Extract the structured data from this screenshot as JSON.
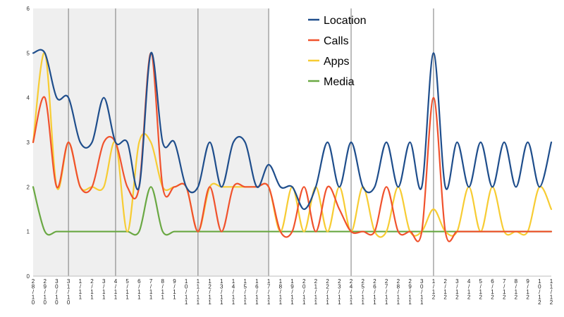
{
  "chart_data": {
    "type": "line",
    "ylim": [
      0,
      6
    ],
    "yticks": [
      "0",
      "1",
      "2",
      "3",
      "4",
      "5",
      "6"
    ],
    "grid": "vertical",
    "legend_position": "top-right",
    "categories": [
      "28/10",
      "29/10",
      "30/10",
      "31/10",
      "1/11",
      "2/11",
      "3/11",
      "4/11",
      "5/11",
      "6/11",
      "7/11",
      "8/11",
      "9/11",
      "10/11",
      "11/11",
      "12/11",
      "13/11",
      "14/11",
      "15/11",
      "16/11",
      "17/11",
      "18/11",
      "19/11",
      "20/11",
      "21/11",
      "22/11",
      "23/11",
      "24/11",
      "25/11",
      "26/11",
      "27/11",
      "28/11",
      "29/11",
      "30/11",
      "1/12",
      "2/12",
      "3/12",
      "4/12",
      "5/12",
      "6/12",
      "7/12",
      "8/12",
      "9/12",
      "10/12",
      "11/12"
    ],
    "series": [
      {
        "name": "Location",
        "color": "#1f4e8c",
        "values": [
          5,
          5,
          4,
          4,
          3,
          3,
          4,
          3,
          3,
          2,
          5,
          3,
          3,
          2,
          2,
          3,
          2,
          3,
          3,
          2,
          2.5,
          2,
          2,
          1.5,
          2,
          3,
          2,
          3,
          2,
          2,
          3,
          2,
          3,
          2,
          5,
          2,
          3,
          2,
          3,
          2,
          3,
          2,
          3,
          2,
          3
        ]
      },
      {
        "name": "Calls",
        "color": "#f0522d",
        "values": [
          3,
          4,
          2,
          3,
          2,
          2,
          3,
          3,
          2,
          2,
          5,
          2,
          2,
          2,
          1,
          2,
          1,
          2,
          2,
          2,
          2,
          1,
          1,
          2,
          1,
          2,
          1.5,
          1,
          1,
          1,
          2,
          1,
          1,
          1,
          4,
          1,
          1,
          1,
          1,
          1,
          1,
          1,
          1,
          1,
          1
        ]
      },
      {
        "name": "Apps",
        "color": "#f7cc33",
        "values": [
          3,
          5,
          2,
          3,
          2,
          2,
          2,
          3,
          1,
          3,
          3,
          2,
          2,
          2,
          1,
          2,
          2,
          2,
          2,
          2,
          2,
          1,
          2,
          1,
          2,
          1,
          2,
          1,
          2,
          1,
          1,
          2,
          1,
          1,
          1.5,
          1,
          1,
          2,
          1,
          2,
          1,
          1,
          1,
          2,
          1.5
        ]
      },
      {
        "name": "Media",
        "color": "#6aa843",
        "values": [
          2,
          1,
          1,
          1,
          1,
          1,
          1,
          1,
          1,
          1,
          2,
          1,
          1,
          1,
          1,
          1,
          1,
          1,
          1,
          1,
          1,
          1,
          1,
          1,
          1,
          1,
          1,
          1,
          1,
          1,
          1,
          1,
          1,
          1,
          1,
          1,
          1,
          1,
          1,
          1,
          1,
          1,
          1,
          1,
          1
        ]
      }
    ]
  }
}
